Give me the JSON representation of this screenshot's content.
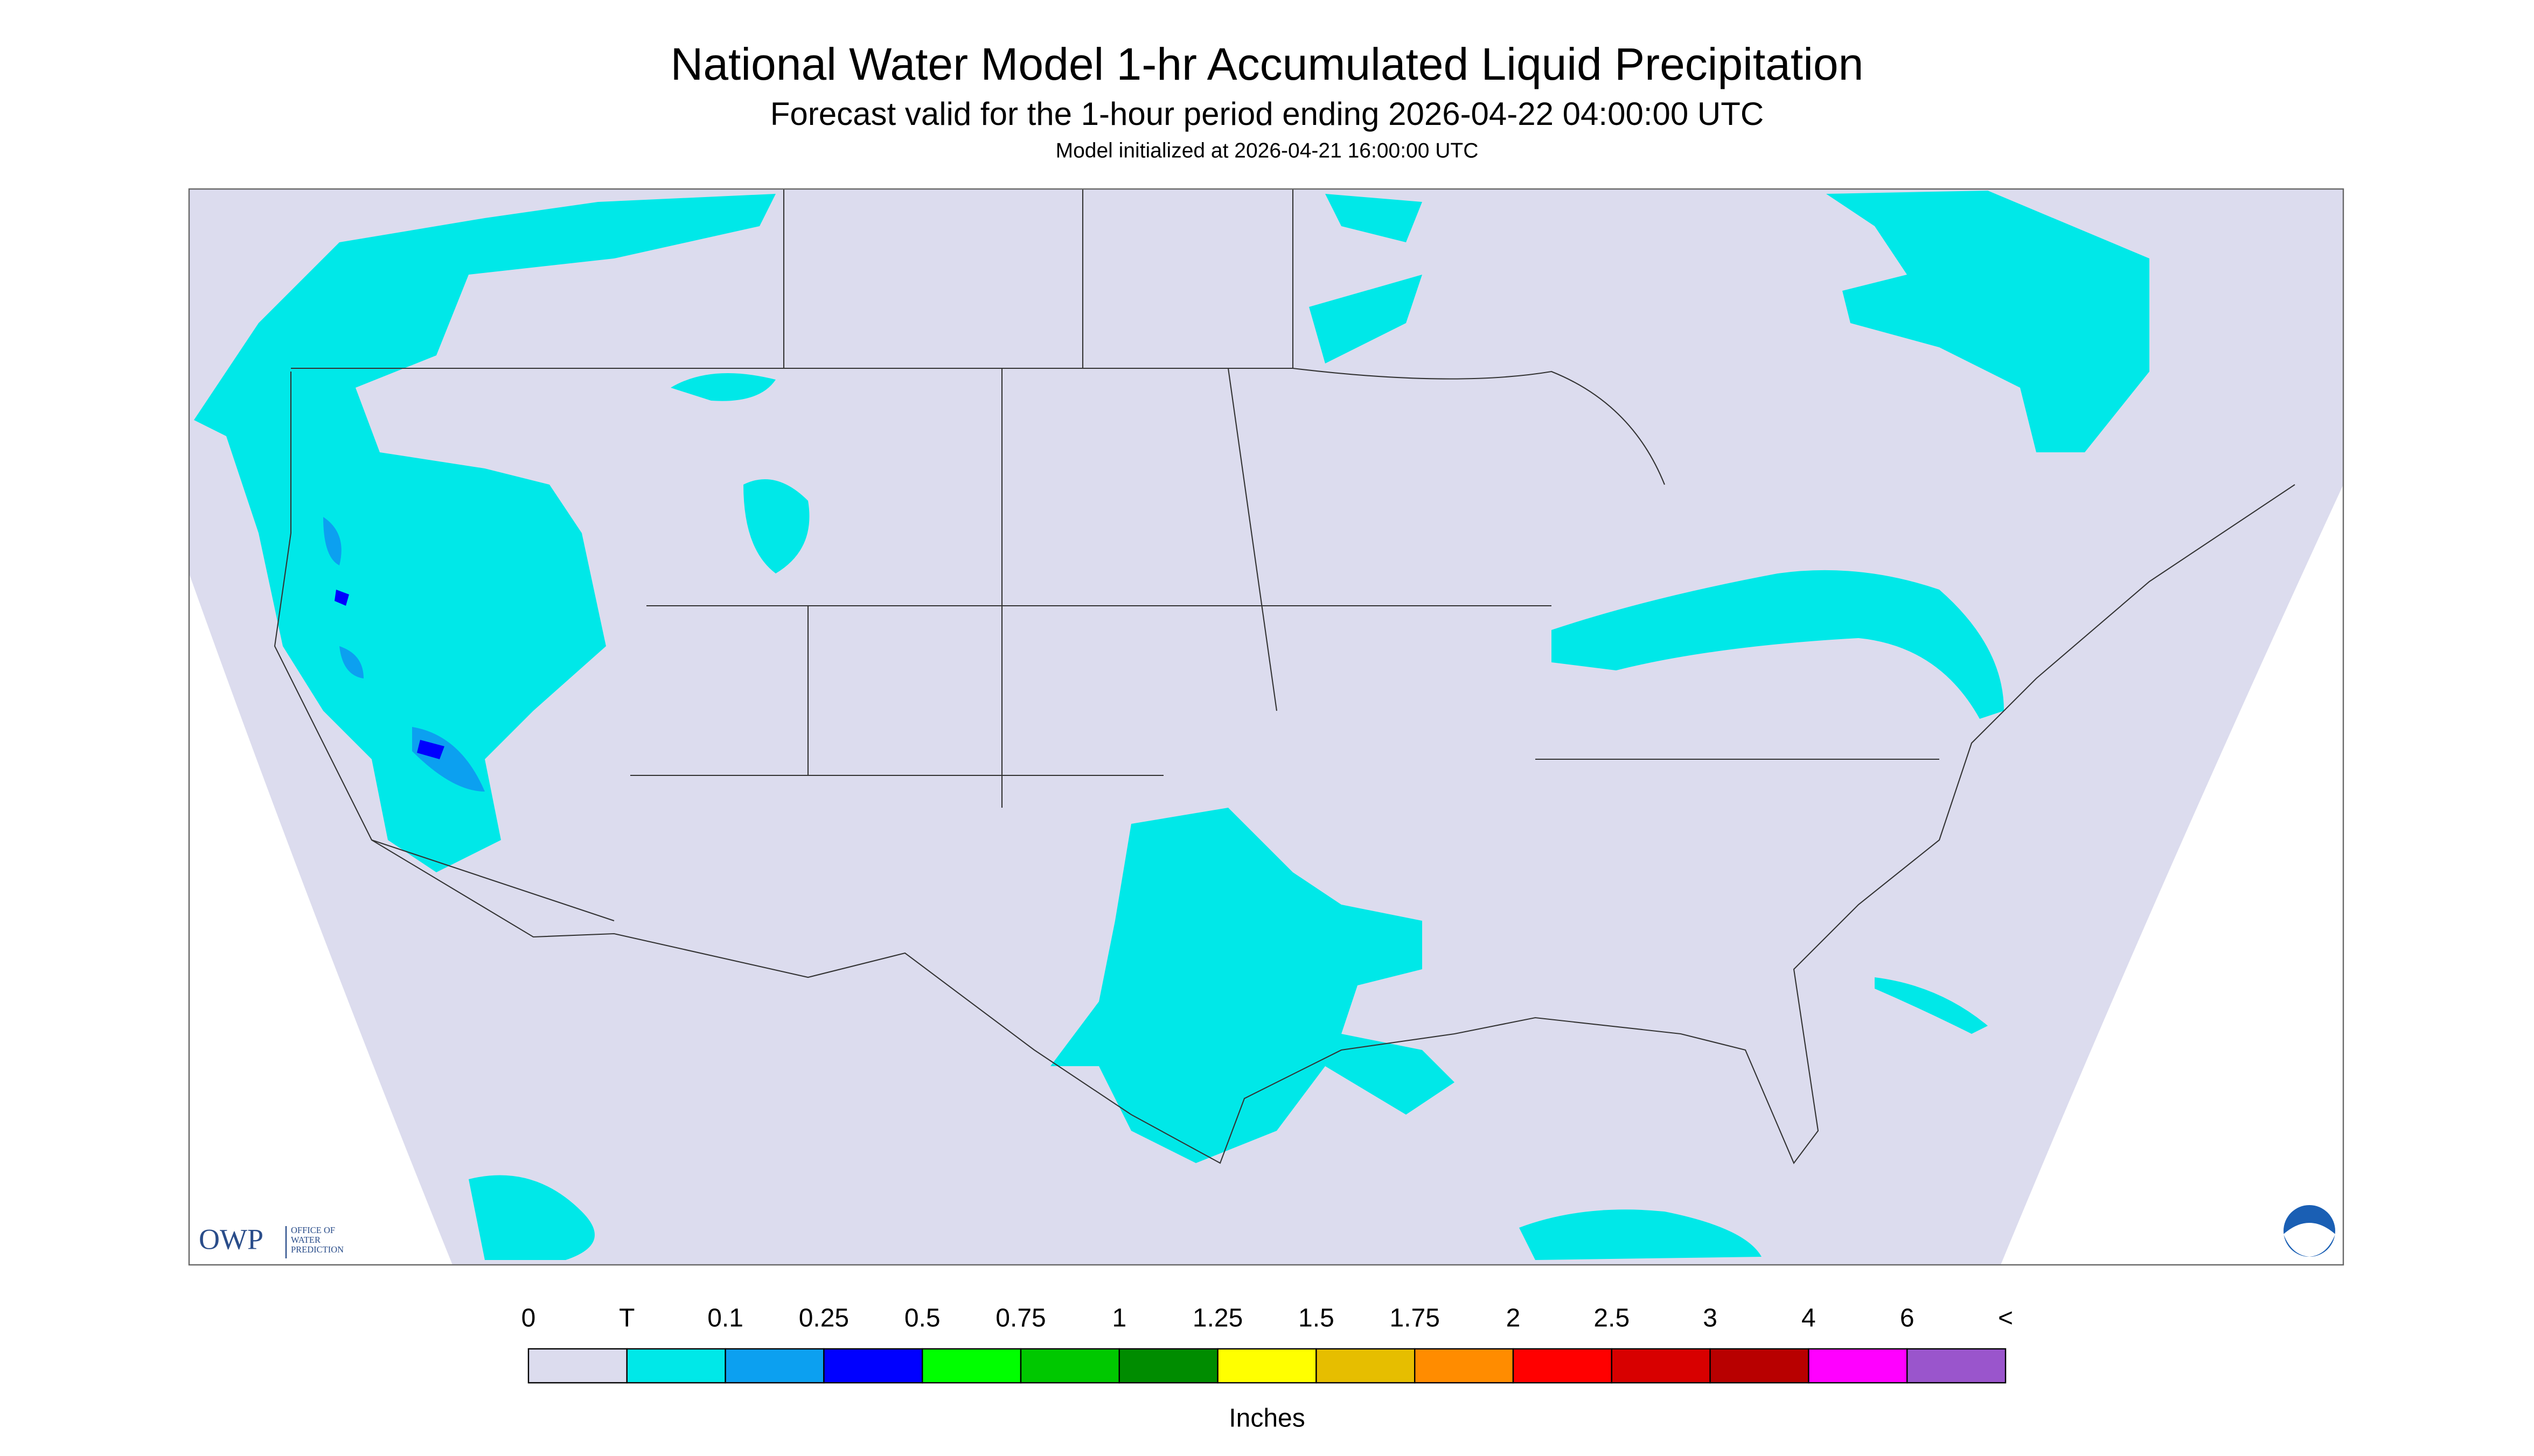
{
  "header": {
    "title": "National Water Model 1-hr Accumulated Liquid Precipitation",
    "subtitle": "Forecast valid for the 1-hour period ending 2026-04-22 04:00:00 UTC",
    "init": "Model initialized at 2026-04-21 16:00:00 UTC"
  },
  "logo": {
    "abbr": "OWP",
    "lines": [
      "OFFICE OF",
      "WATER",
      "PREDICTION"
    ]
  },
  "legend": {
    "labels": [
      "0",
      "T",
      "0.1",
      "0.25",
      "0.5",
      "0.75",
      "1",
      "1.25",
      "1.5",
      "1.75",
      "2",
      "2.5",
      "3",
      "4",
      "6",
      "<"
    ],
    "colors": [
      "#dcdcee",
      "#00e8e8",
      "#0ca0f0",
      "#0000ff",
      "#00ff00",
      "#00c800",
      "#008c00",
      "#ffff00",
      "#e6be00",
      "#ff8c00",
      "#ff0000",
      "#d80000",
      "#b80000",
      "#ff00ff",
      "#9a55cc"
    ],
    "unit": "Inches"
  }
}
